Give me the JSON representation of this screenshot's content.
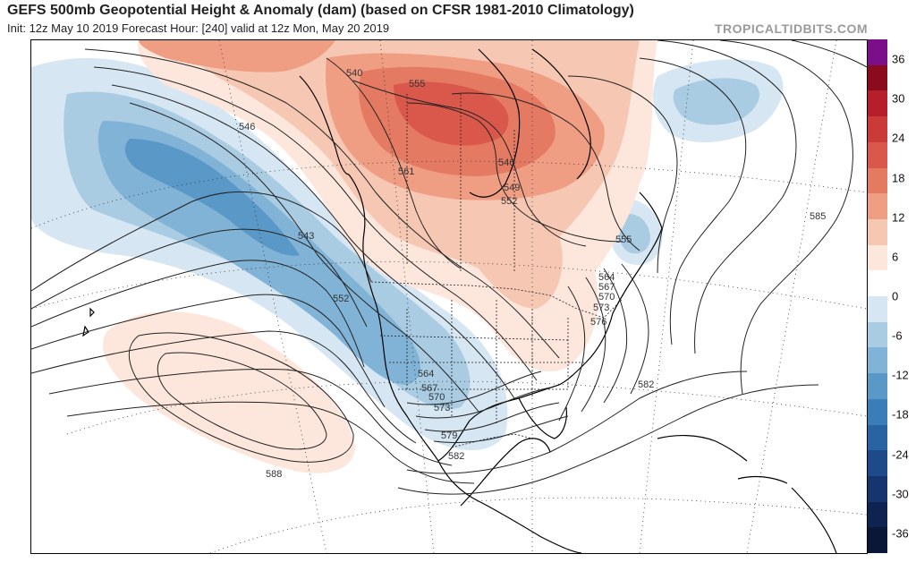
{
  "header": {
    "title": "GEFS 500mb Geopotential Height & Anomaly (dam) (based on CFSR 1981-2010 Climatology)",
    "subtitle": "Init: 12z May 10 2019   Forecast Hour: [240]   valid at 12z Mon, May 20 2019",
    "brand": "TROPICALTIDBITS.COM"
  },
  "colorbar": {
    "ticks": [
      "36",
      "30",
      "24",
      "18",
      "12",
      "6",
      "0",
      "-6",
      "-12",
      "-18",
      "-24",
      "-30",
      "-36"
    ],
    "colors": [
      "#7b0f8a",
      "#8a0a1e",
      "#b51e2a",
      "#c93a38",
      "#d9584b",
      "#e57a63",
      "#ef9e84",
      "#f6c7b2",
      "#fde7dc",
      "#ffffff",
      "#d6e6f2",
      "#a9cce3",
      "#80b3d6",
      "#5a98c7",
      "#3b7db6",
      "#2a63a1",
      "#1f4a89",
      "#16356e",
      "#0f2350",
      "#0a1736"
    ]
  },
  "contours": {
    "labels": [
      "540",
      "546",
      "555",
      "546",
      "561",
      "549",
      "552",
      "543",
      "552",
      "555",
      "564",
      "567",
      "570",
      "573",
      "576",
      "564",
      "567",
      "570",
      "573",
      "579",
      "582",
      "582",
      "585",
      "588"
    ]
  }
}
